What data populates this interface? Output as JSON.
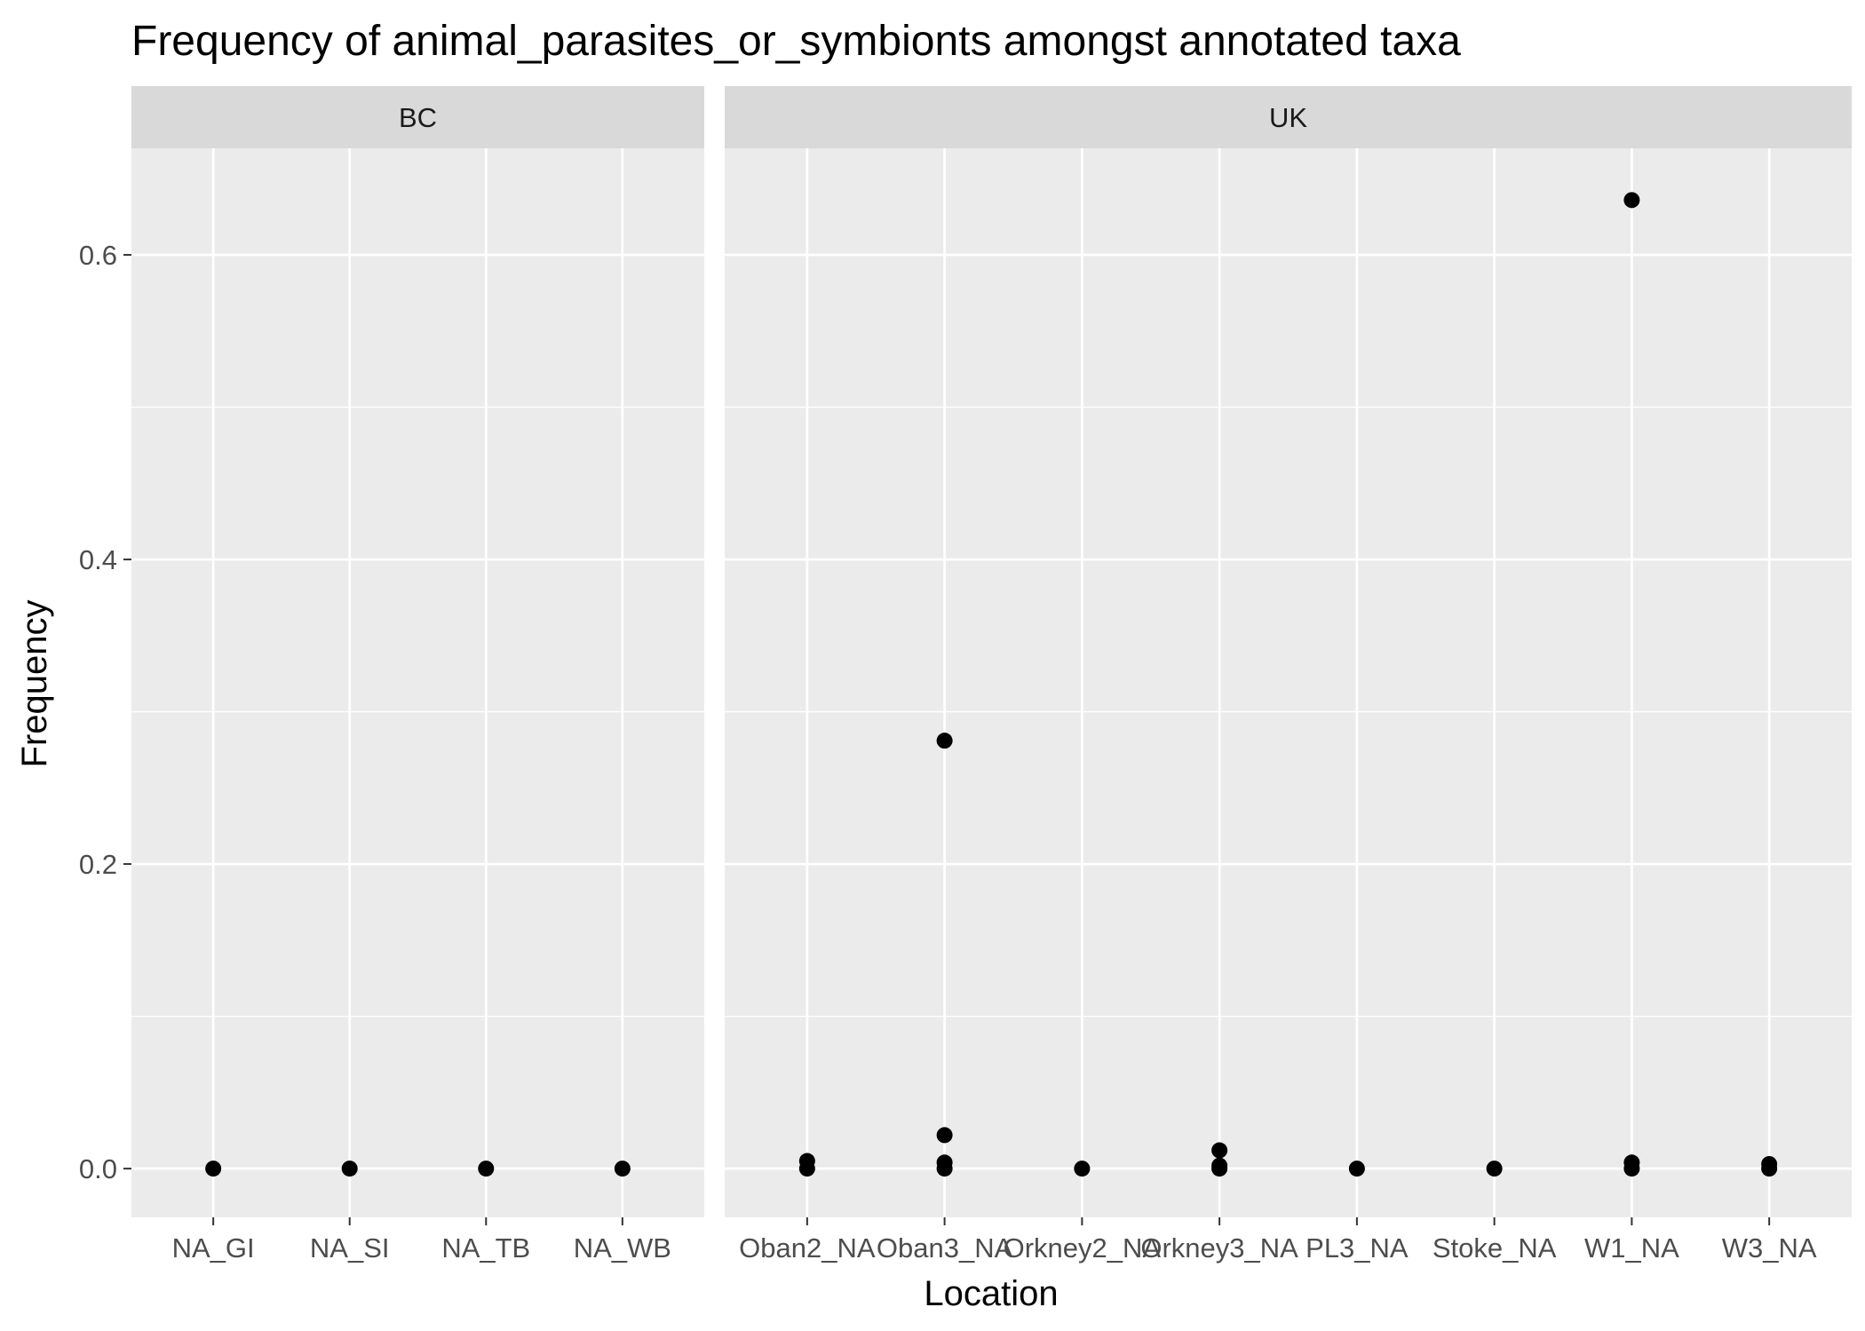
{
  "chart_data": {
    "type": "scatter",
    "title": "Frequency of animal_parasites_or_symbionts amongst annotated taxa",
    "xlabel": "Location",
    "ylabel": "Frequency",
    "ylim": [
      -0.032,
      0.67
    ],
    "y_ticks": [
      0.0,
      0.2,
      0.4,
      0.6
    ],
    "y_tick_labels": [
      "0.0",
      "0.2",
      "0.4",
      "0.6"
    ],
    "grid": true,
    "legend": "none",
    "facets": [
      {
        "label": "BC",
        "categories": [
          "NA_GI",
          "NA_SI",
          "NA_TB",
          "NA_WB"
        ],
        "points": [
          {
            "x": "NA_GI",
            "y": 0.0
          },
          {
            "x": "NA_SI",
            "y": 0.0
          },
          {
            "x": "NA_TB",
            "y": 0.0
          },
          {
            "x": "NA_WB",
            "y": 0.0
          }
        ]
      },
      {
        "label": "UK",
        "categories": [
          "Oban2_NA",
          "Oban3_NA",
          "Orkney2_NA",
          "Orkney3_NA",
          "PL3_NA",
          "Stoke_NA",
          "W1_NA",
          "W3_NA"
        ],
        "points": [
          {
            "x": "Oban2_NA",
            "y": 0.0
          },
          {
            "x": "Oban2_NA",
            "y": 0.005
          },
          {
            "x": "Oban3_NA",
            "y": 0.0
          },
          {
            "x": "Oban3_NA",
            "y": 0.004
          },
          {
            "x": "Oban3_NA",
            "y": 0.022
          },
          {
            "x": "Oban3_NA",
            "y": 0.281
          },
          {
            "x": "Orkney2_NA",
            "y": 0.0
          },
          {
            "x": "Orkney3_NA",
            "y": 0.0
          },
          {
            "x": "Orkney3_NA",
            "y": 0.002
          },
          {
            "x": "Orkney3_NA",
            "y": 0.012
          },
          {
            "x": "PL3_NA",
            "y": 0.0
          },
          {
            "x": "Stoke_NA",
            "y": 0.0
          },
          {
            "x": "W1_NA",
            "y": 0.0
          },
          {
            "x": "W1_NA",
            "y": 0.004
          },
          {
            "x": "W1_NA",
            "y": 0.636
          },
          {
            "x": "W3_NA",
            "y": 0.0
          },
          {
            "x": "W3_NA",
            "y": 0.003
          }
        ]
      }
    ],
    "colors": {
      "panel_background": "#ebebeb",
      "strip_background": "#d9d9d9",
      "grid": "#ffffff",
      "point": "#000000"
    }
  }
}
